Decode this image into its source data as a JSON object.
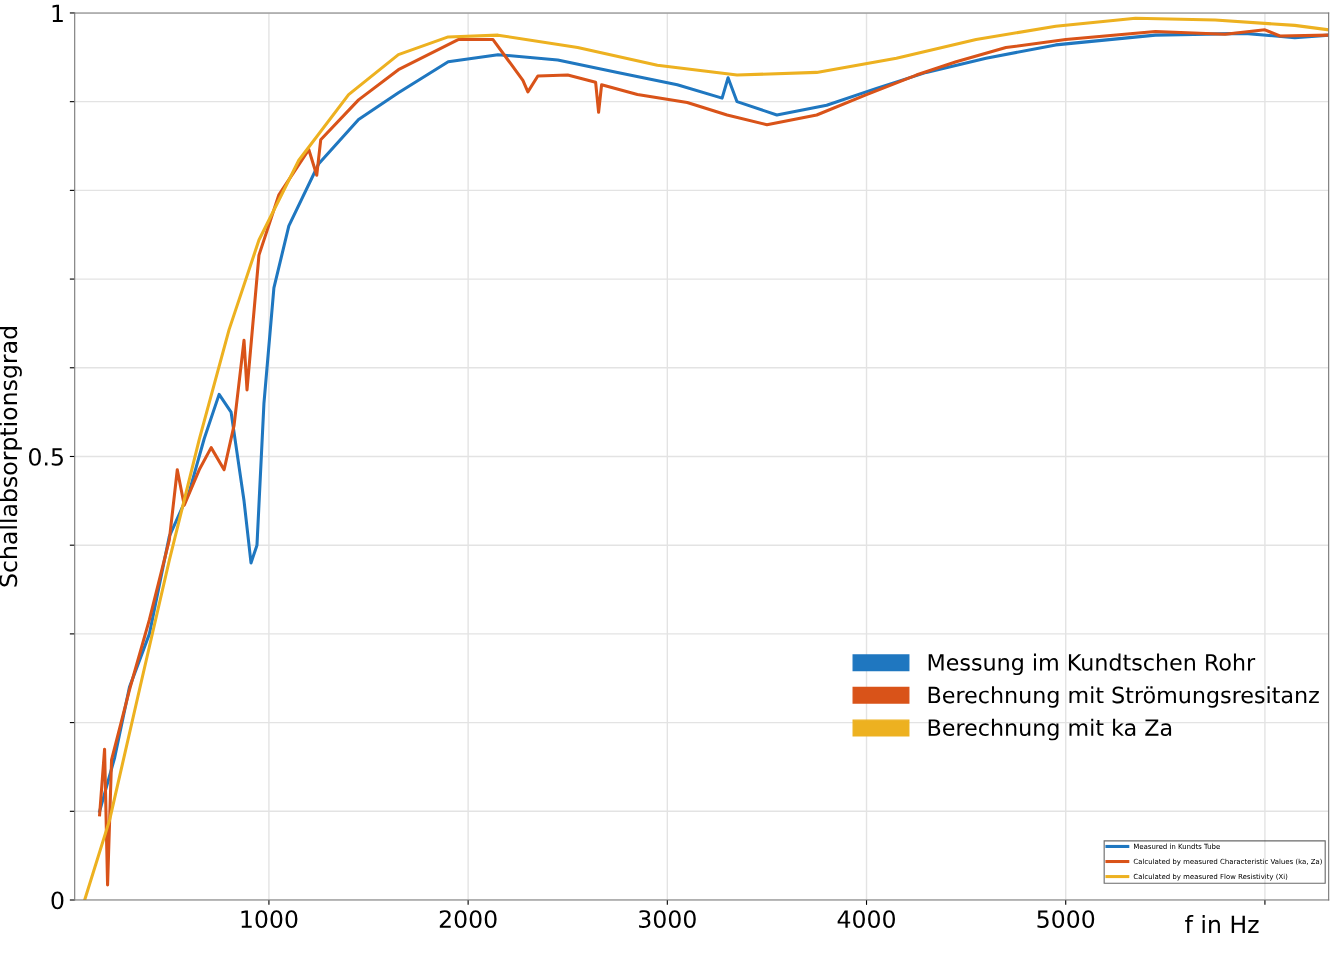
{
  "chart_data": {
    "type": "line",
    "xlabel": "f in Hz",
    "ylabel": "Schallabsorptionsgrad",
    "xlim": [
      25,
      6320
    ],
    "ylim": [
      0,
      1
    ],
    "xticks": [
      1000,
      2000,
      3000,
      4000,
      5000,
      {
        "value": 6000,
        "label": null
      }
    ],
    "yticks": [
      0,
      {
        "value": 0.1,
        "label": null
      },
      {
        "value": 0.2,
        "label": null
      },
      {
        "value": 0.3,
        "label": null
      },
      {
        "value": 0.4,
        "label": null
      },
      0.5,
      {
        "value": 0.6,
        "label": null
      },
      {
        "value": 0.7,
        "label": null
      },
      {
        "value": 0.8,
        "label": null
      },
      {
        "value": 0.9,
        "label": null
      },
      1
    ],
    "grid": true,
    "legend": "bottom right",
    "marker": "none",
    "line_style": "solid",
    "annotations": [
      "Measured in Kundts Tube",
      "Calculated by measured Characteristic Values (ka, Za)",
      "Calculated by measured Flow Resistivity (Xi)"
    ],
    "series": [
      {
        "name": "Messung im Kundtschen Rohr",
        "color": "#1f77c0",
        "x": [
          150,
          225,
          300,
          400,
          500,
          600,
          675,
          750,
          810,
          875,
          910,
          940,
          975,
          1025,
          1100,
          1250,
          1450,
          1650,
          1900,
          2150,
          2450,
          2750,
          3050,
          3275,
          3305,
          3350,
          3550,
          3800,
          4050,
          4300,
          4600,
          4950,
          5450,
          5900,
          6150,
          6320
        ],
        "values": [
          0.1,
          0.16,
          0.24,
          0.3,
          0.41,
          0.46,
          0.52,
          0.57,
          0.55,
          0.45,
          0.38,
          0.4,
          0.56,
          0.69,
          0.76,
          0.83,
          0.88,
          0.91,
          0.945,
          0.953,
          0.947,
          0.933,
          0.919,
          0.904,
          0.927,
          0.9,
          0.885,
          0.896,
          0.915,
          0.933,
          0.949,
          0.964,
          0.975,
          0.977,
          0.972,
          0.975
        ]
      },
      {
        "name": "Berechnung mit Strömungsresitanz",
        "color": "#d95319",
        "x": [
          150,
          175,
          190,
          210,
          300,
          400,
          500,
          540,
          575,
          650,
          710,
          775,
          825,
          875,
          890,
          950,
          1050,
          1200,
          1240,
          1260,
          1450,
          1650,
          1950,
          2125,
          2200,
          2275,
          2300,
          2350,
          2500,
          2640,
          2655,
          2670,
          2850,
          3100,
          3300,
          3500,
          3750,
          4000,
          4250,
          4450,
          4700,
          5000,
          5450,
          5800,
          6000,
          6075,
          6320
        ],
        "values": [
          0.096,
          0.17,
          0.017,
          0.158,
          0.237,
          0.316,
          0.406,
          0.485,
          0.445,
          0.485,
          0.51,
          0.485,
          0.535,
          0.631,
          0.575,
          0.727,
          0.795,
          0.846,
          0.817,
          0.857,
          0.902,
          0.936,
          0.97,
          0.97,
          0.947,
          0.924,
          0.911,
          0.929,
          0.93,
          0.922,
          0.888,
          0.919,
          0.908,
          0.899,
          0.885,
          0.874,
          0.885,
          0.908,
          0.93,
          0.945,
          0.961,
          0.97,
          0.979,
          0.976,
          0.981,
          0.974,
          0.975
        ]
      },
      {
        "name": "Berechnung mit ka Za",
        "color": "#edb120",
        "x": [
          75,
          200,
          350,
          500,
          650,
          800,
          950,
          1150,
          1400,
          1650,
          1900,
          2150,
          2550,
          2950,
          3350,
          3750,
          4150,
          4550,
          4950,
          5350,
          5750,
          6150,
          6320
        ],
        "values": [
          0,
          0.09,
          0.237,
          0.383,
          0.519,
          0.643,
          0.744,
          0.834,
          0.908,
          0.953,
          0.973,
          0.975,
          0.961,
          0.941,
          0.93,
          0.933,
          0.949,
          0.97,
          0.985,
          0.994,
          0.992,
          0.986,
          0.981
        ]
      }
    ]
  }
}
